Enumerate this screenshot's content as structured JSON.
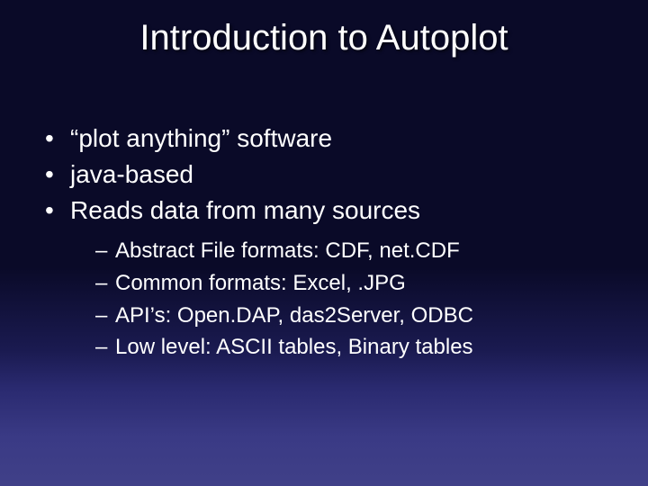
{
  "slide": {
    "title": "Introduction to Autoplot",
    "bullets": [
      {
        "text": "“plot anything” software"
      },
      {
        "text": "java-based"
      },
      {
        "text": "Reads data from many sources",
        "sub": [
          "Abstract File formats: CDF, net.CDF",
          "Common formats: Excel, .JPG",
          "API’s: Open.DAP, das2Server, ODBC",
          "Low level: ASCII tables, Binary tables"
        ]
      }
    ],
    "colors": {
      "text": "#ffffff",
      "title": "#ffffff",
      "bg_top": "#0a0a28",
      "bg_bottom": "#404088"
    },
    "typography": {
      "title_fontsize_pt": 40,
      "bullet_fontsize_pt": 28,
      "subbullet_fontsize_pt": 24,
      "font_family": "Arial"
    }
  }
}
